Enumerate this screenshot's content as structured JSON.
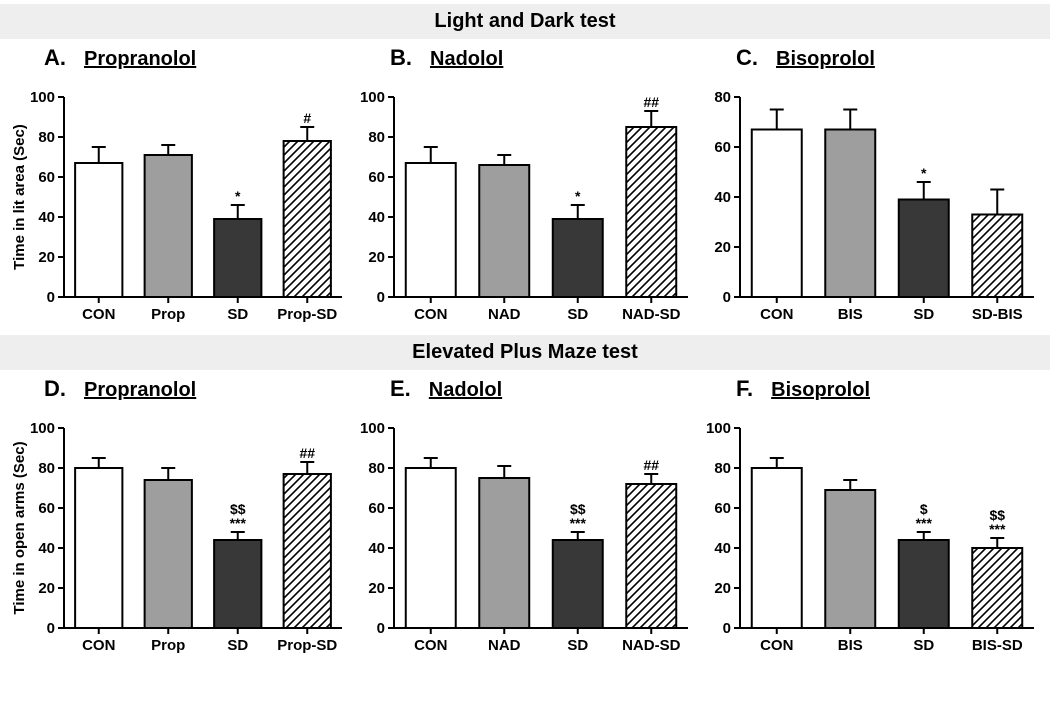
{
  "section1_title": "Light and Dark test",
  "section2_title": "Elevated Plus Maze test",
  "ylabel_top": "Time in lit area (Sec)",
  "ylabel_bottom": "Time in open arms (Sec)",
  "colors": {
    "bar_open": "#ffffff",
    "bar_gray": "#9e9e9e",
    "bar_dark": "#383838",
    "bar_hatch_bg": "#ffffff",
    "stroke": "#000000"
  },
  "panels": {
    "A": {
      "letter": "A.",
      "title": "Propranolol",
      "ymax": 100,
      "ytick": 20,
      "bars": [
        {
          "label": "CON",
          "value": 67,
          "err": 8,
          "fill": "open",
          "sig": ""
        },
        {
          "label": "Prop",
          "value": 71,
          "err": 5,
          "fill": "gray",
          "sig": ""
        },
        {
          "label": "SD",
          "value": 39,
          "err": 7,
          "fill": "dark",
          "sig": "*"
        },
        {
          "label": "Prop-SD",
          "value": 78,
          "err": 7,
          "fill": "hatch",
          "sig": "#"
        }
      ]
    },
    "B": {
      "letter": "B.",
      "title": "Nadolol",
      "ymax": 100,
      "ytick": 20,
      "bars": [
        {
          "label": "CON",
          "value": 67,
          "err": 8,
          "fill": "open",
          "sig": ""
        },
        {
          "label": "NAD",
          "value": 66,
          "err": 5,
          "fill": "gray",
          "sig": ""
        },
        {
          "label": "SD",
          "value": 39,
          "err": 7,
          "fill": "dark",
          "sig": "*"
        },
        {
          "label": "NAD-SD",
          "value": 85,
          "err": 8,
          "fill": "hatch",
          "sig": "##"
        }
      ]
    },
    "C": {
      "letter": "C.",
      "title": "Bisoprolol",
      "ymax": 80,
      "ytick": 20,
      "bars": [
        {
          "label": "CON",
          "value": 67,
          "err": 8,
          "fill": "open",
          "sig": ""
        },
        {
          "label": "BIS",
          "value": 67,
          "err": 8,
          "fill": "gray",
          "sig": ""
        },
        {
          "label": "SD",
          "value": 39,
          "err": 7,
          "fill": "dark",
          "sig": "*"
        },
        {
          "label": "SD-BIS",
          "value": 33,
          "err": 10,
          "fill": "hatch",
          "sig": ""
        }
      ]
    },
    "D": {
      "letter": "D.",
      "title": "Propranolol",
      "ymax": 100,
      "ytick": 20,
      "bars": [
        {
          "label": "CON",
          "value": 80,
          "err": 5,
          "fill": "open",
          "sig": ""
        },
        {
          "label": "Prop",
          "value": 74,
          "err": 6,
          "fill": "gray",
          "sig": ""
        },
        {
          "label": "SD",
          "value": 44,
          "err": 4,
          "fill": "dark",
          "sig": "***",
          "sig2": "$$"
        },
        {
          "label": "Prop-SD",
          "value": 77,
          "err": 6,
          "fill": "hatch",
          "sig": "##"
        }
      ]
    },
    "E": {
      "letter": "E.",
      "title": "Nadolol",
      "ymax": 100,
      "ytick": 20,
      "bars": [
        {
          "label": "CON",
          "value": 80,
          "err": 5,
          "fill": "open",
          "sig": ""
        },
        {
          "label": "NAD",
          "value": 75,
          "err": 6,
          "fill": "gray",
          "sig": ""
        },
        {
          "label": "SD",
          "value": 44,
          "err": 4,
          "fill": "dark",
          "sig": "***",
          "sig2": "$$"
        },
        {
          "label": "NAD-SD",
          "value": 72,
          "err": 5,
          "fill": "hatch",
          "sig": "##"
        }
      ]
    },
    "F": {
      "letter": "F.",
      "title": "Bisoprolol",
      "ymax": 100,
      "ytick": 20,
      "bars": [
        {
          "label": "CON",
          "value": 80,
          "err": 5,
          "fill": "open",
          "sig": ""
        },
        {
          "label": "BIS",
          "value": 69,
          "err": 5,
          "fill": "gray",
          "sig": ""
        },
        {
          "label": "SD",
          "value": 44,
          "err": 4,
          "fill": "dark",
          "sig": "***",
          "sig2": "$"
        },
        {
          "label": "BIS-SD",
          "value": 40,
          "err": 5,
          "fill": "hatch",
          "sig": "***",
          "sig2": "$$"
        }
      ]
    }
  }
}
